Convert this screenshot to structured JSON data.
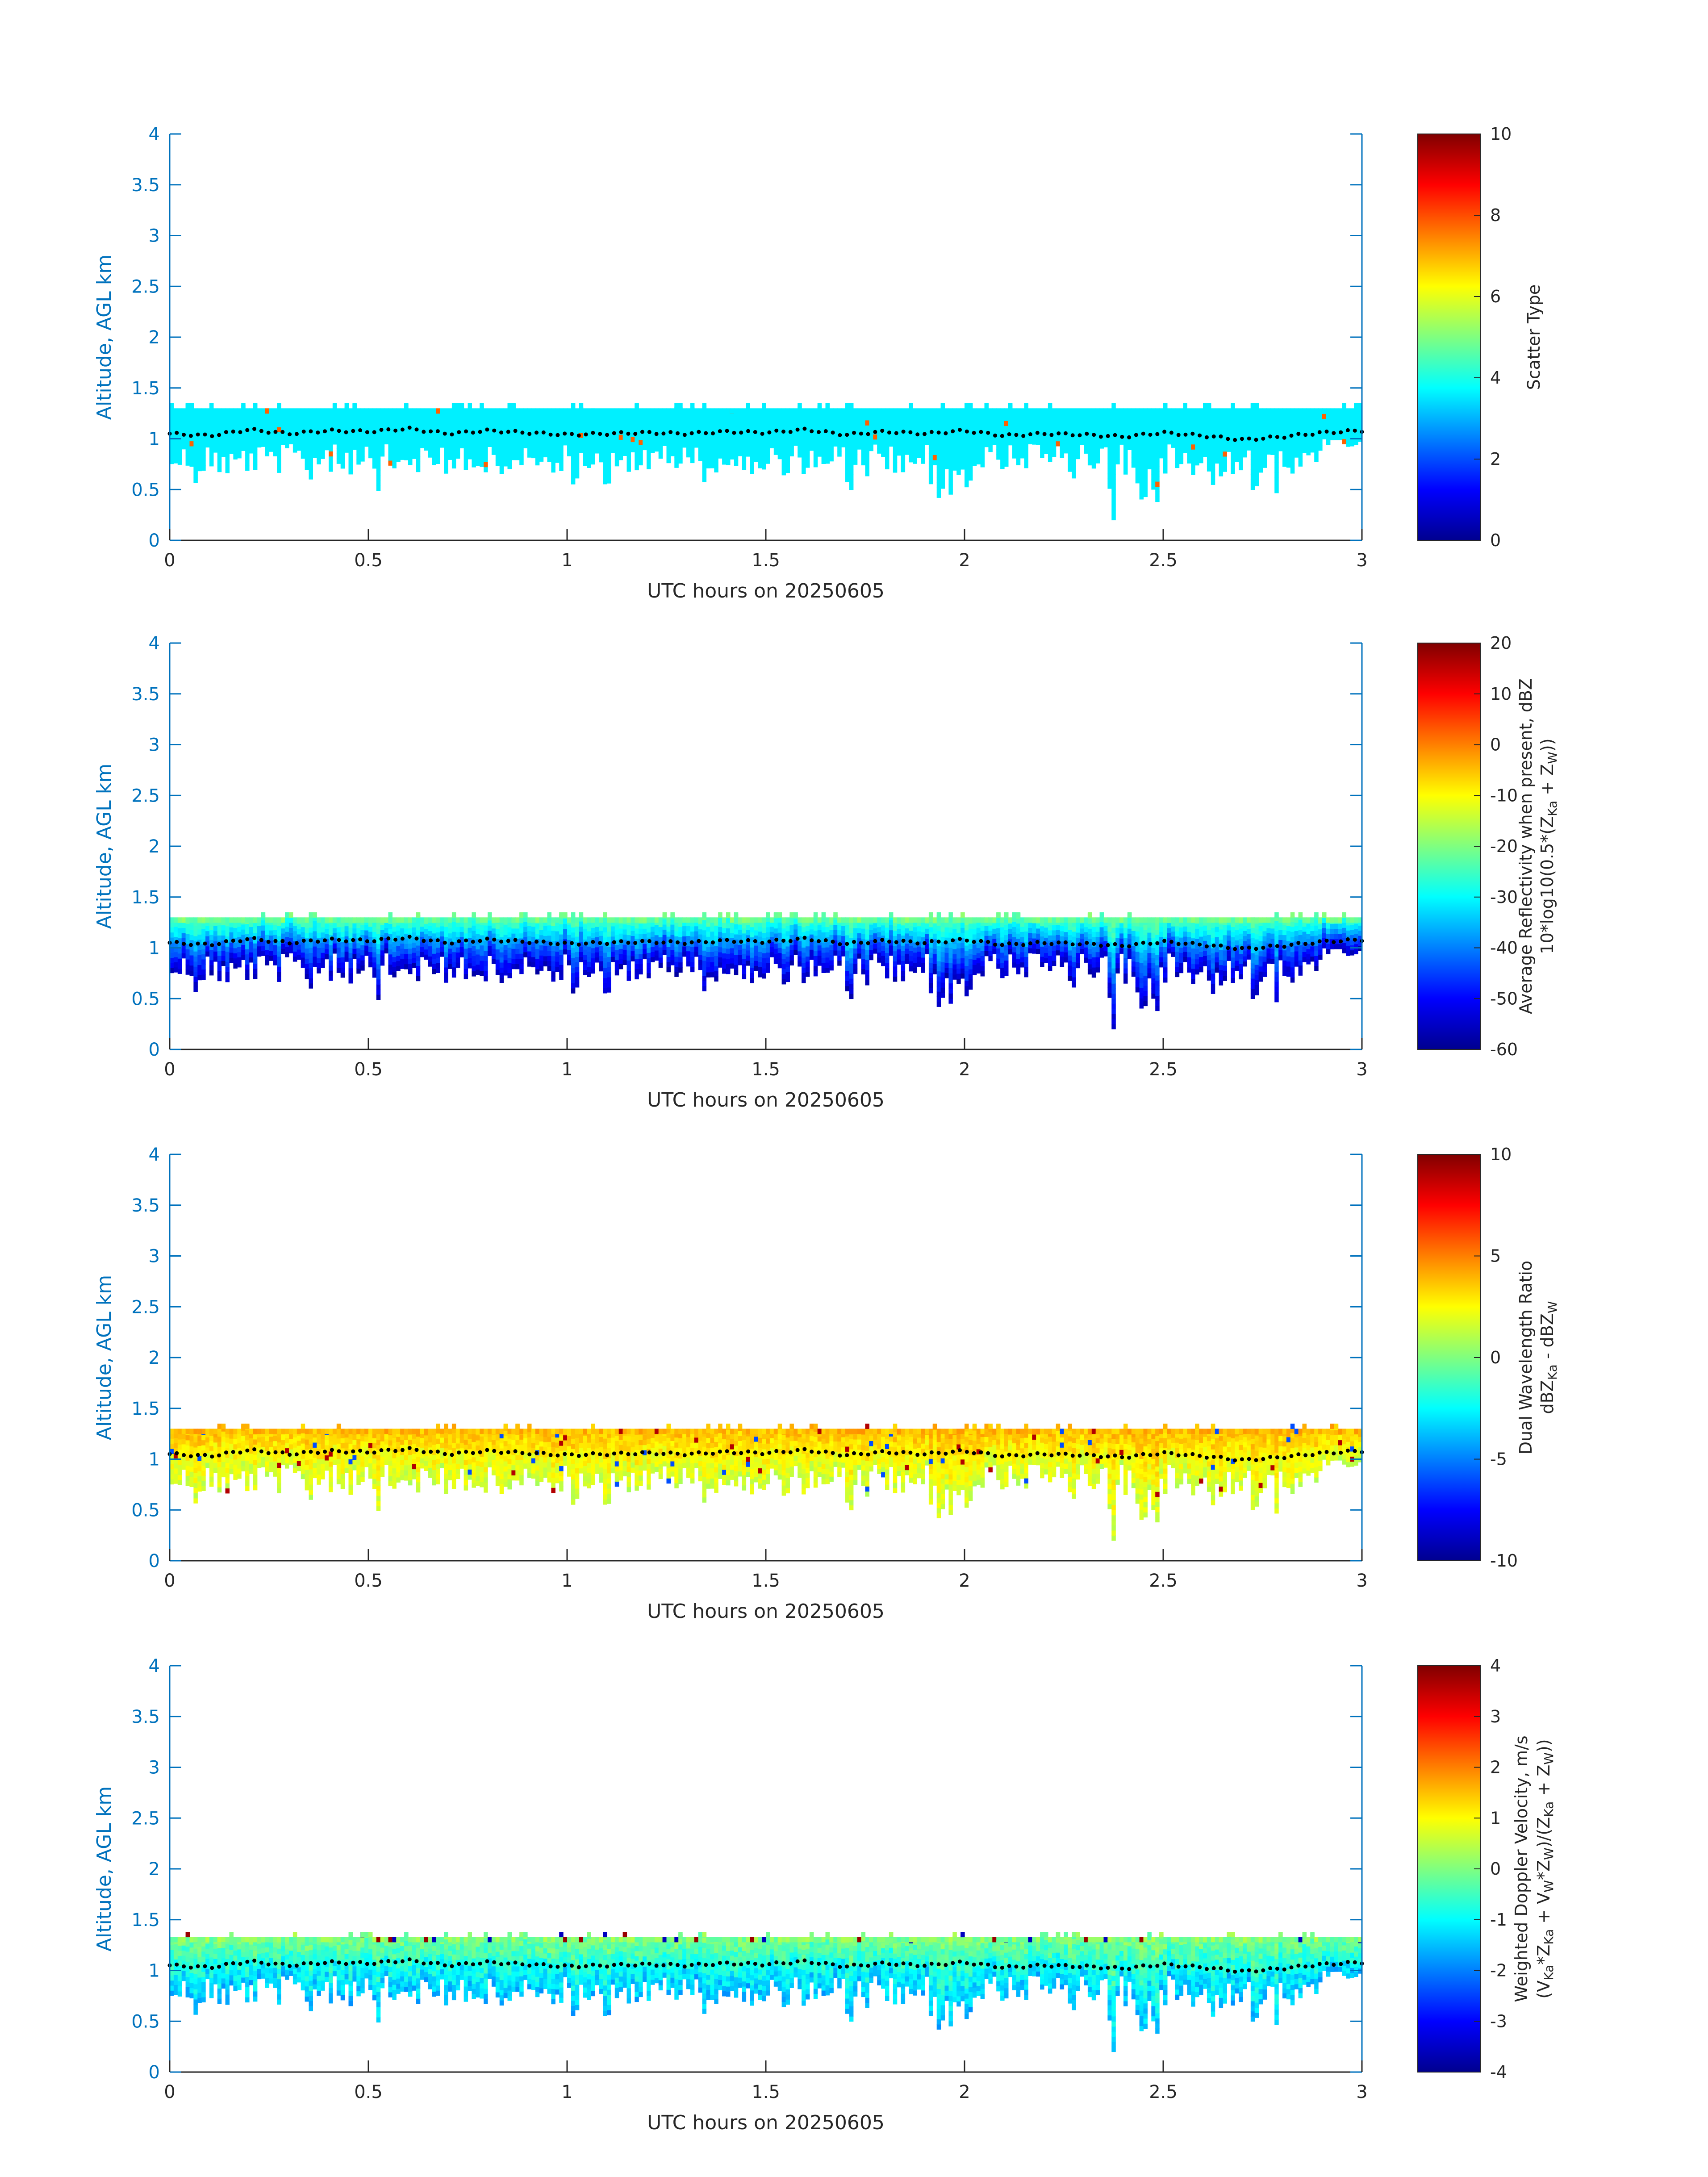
{
  "chart_data": [
    {
      "type": "heatmap",
      "xlabel": "UTC hours on 20250605",
      "ylabel": "Altitude, AGL km",
      "xlim": [
        0,
        3
      ],
      "ylim": [
        0,
        4
      ],
      "x_ticks": [
        "0",
        "0.5",
        "1",
        "1.5",
        "2",
        "2.5",
        "3"
      ],
      "y_ticks": [
        "0",
        "0.5",
        "1",
        "1.5",
        "2",
        "2.5",
        "3",
        "3.5",
        "4"
      ],
      "colorbar": {
        "label_lines": [
          "Scatter Type"
        ],
        "ticks": [
          "0",
          "2",
          "4",
          "6",
          "8",
          "10"
        ],
        "clim": [
          0,
          10
        ]
      },
      "field": "scatter_type",
      "layer_top_km": 1.3,
      "dominant_value": 3.6,
      "noted_value": 7.8
    },
    {
      "type": "heatmap",
      "xlabel": "UTC hours on 20250605",
      "ylabel": "Altitude, AGL km",
      "xlim": [
        0,
        3
      ],
      "ylim": [
        0,
        4
      ],
      "x_ticks": [
        "0",
        "0.5",
        "1",
        "1.5",
        "2",
        "2.5",
        "3"
      ],
      "y_ticks": [
        "0",
        "0.5",
        "1",
        "1.5",
        "2",
        "2.5",
        "3",
        "3.5",
        "4"
      ],
      "colorbar": {
        "label_lines": [
          "Average Reflectivity when present, dBZ",
          "10*log10(0.5*(Z",
          "Ka",
          " + Z",
          "W",
          "))"
        ],
        "ticks": [
          "-60",
          "-50",
          "-40",
          "-30",
          "-20",
          "-10",
          "0",
          "10",
          "20"
        ],
        "clim": [
          -60,
          20
        ]
      },
      "field": "reflectivity",
      "layer_top_km": 1.3,
      "value_range": [
        -55,
        -15
      ]
    },
    {
      "type": "heatmap",
      "xlabel": "UTC hours on 20250605",
      "ylabel": "Altitude, AGL km",
      "xlim": [
        0,
        3
      ],
      "ylim": [
        0,
        4
      ],
      "x_ticks": [
        "0",
        "0.5",
        "1",
        "1.5",
        "2",
        "2.5",
        "3"
      ],
      "y_ticks": [
        "0",
        "0.5",
        "1",
        "1.5",
        "2",
        "2.5",
        "3",
        "3.5",
        "4"
      ],
      "colorbar": {
        "label_lines": [
          "Dual Wavelength Ratio",
          "dBZ",
          "Ka",
          " - dBZ",
          "W"
        ],
        "ticks": [
          "-10",
          "-5",
          "0",
          "5",
          "10"
        ],
        "clim": [
          -10,
          10
        ]
      },
      "field": "dwr",
      "layer_top_km": 1.3,
      "value_range": [
        0,
        4
      ]
    },
    {
      "type": "heatmap",
      "xlabel": "UTC hours on 20250605",
      "ylabel": "Altitude, AGL km",
      "xlim": [
        0,
        3
      ],
      "ylim": [
        0,
        4
      ],
      "x_ticks": [
        "0",
        "0.5",
        "1",
        "1.5",
        "2",
        "2.5",
        "3"
      ],
      "y_ticks": [
        "0",
        "0.5",
        "1",
        "1.5",
        "2",
        "2.5",
        "3",
        "3.5",
        "4"
      ],
      "colorbar": {
        "label_lines": [
          "Weighted Doppler Velocity, m/s",
          "(V",
          "Ka",
          "*Z",
          "Ka",
          " + V",
          "W",
          "*Z",
          "W",
          ")/(Z",
          "Ka",
          " + Z",
          "W",
          "))"
        ],
        "ticks": [
          "-4",
          "-3",
          "-2",
          "-1",
          "0",
          "1",
          "2",
          "3",
          "4"
        ],
        "clim": [
          -4,
          4
        ]
      },
      "field": "velocity",
      "layer_top_km": 1.33,
      "value_range": [
        -2,
        0.5
      ]
    }
  ],
  "cloud_base_dotted_line": {
    "x": [
      0,
      0.1,
      0.2,
      0.3,
      0.4,
      0.5,
      0.6,
      0.7,
      0.8,
      0.9,
      1.0,
      1.1,
      1.2,
      1.3,
      1.4,
      1.5,
      1.6,
      1.7,
      1.8,
      1.9,
      2.0,
      2.1,
      2.2,
      2.3,
      2.4,
      2.5,
      2.6,
      2.7,
      2.8,
      2.9,
      3.0
    ],
    "y": [
      1.05,
      1.03,
      1.09,
      1.05,
      1.08,
      1.07,
      1.1,
      1.05,
      1.08,
      1.06,
      1.04,
      1.05,
      1.06,
      1.05,
      1.07,
      1.06,
      1.09,
      1.04,
      1.07,
      1.05,
      1.08,
      1.03,
      1.05,
      1.04,
      1.02,
      1.06,
      1.03,
      0.99,
      1.02,
      1.06,
      1.08
    ],
    "color": "#000000"
  },
  "colors": {
    "axis": "#0072BD",
    "tick_text": "#262626"
  }
}
